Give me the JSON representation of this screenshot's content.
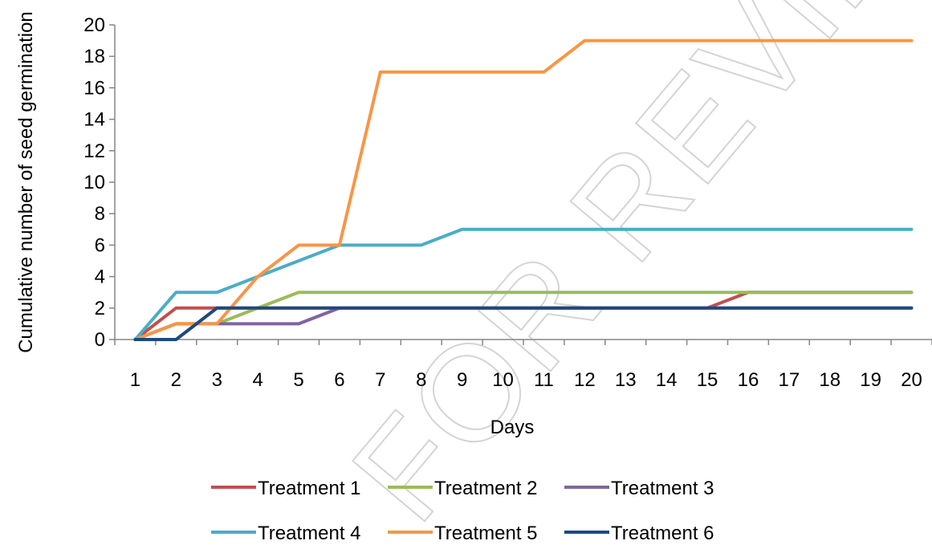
{
  "chart_data": {
    "type": "line",
    "title": "",
    "xlabel": "Days",
    "ylabel": "Cumulative number of seed germination",
    "x": [
      1,
      2,
      3,
      4,
      5,
      6,
      7,
      8,
      9,
      10,
      11,
      12,
      13,
      14,
      15,
      16,
      17,
      18,
      19,
      20
    ],
    "ylim": [
      0,
      20
    ],
    "yticks": [
      0,
      2,
      4,
      6,
      8,
      10,
      12,
      14,
      16,
      18,
      20
    ],
    "grid": false,
    "legend": "bottom",
    "series": [
      {
        "name": "Treatment 1",
        "color": "#c0504d",
        "values": [
          0,
          2,
          2,
          2,
          2,
          2,
          2,
          2,
          2,
          2,
          2,
          2,
          2,
          2,
          2,
          3,
          3,
          3,
          3,
          3
        ]
      },
      {
        "name": "Treatment 2",
        "color": "#9bbb59",
        "values": [
          0,
          1,
          1,
          2,
          3,
          3,
          3,
          3,
          3,
          3,
          3,
          3,
          3,
          3,
          3,
          3,
          3,
          3,
          3,
          3
        ]
      },
      {
        "name": "Treatment 3",
        "color": "#8064a2",
        "values": [
          0,
          1,
          1,
          1,
          1,
          2,
          2,
          2,
          2,
          2,
          2,
          2,
          2,
          2,
          2,
          2,
          2,
          2,
          2,
          2
        ]
      },
      {
        "name": "Treatment 4",
        "color": "#4bacc6",
        "values": [
          0,
          3,
          3,
          4,
          5,
          6,
          6,
          6,
          7,
          7,
          7,
          7,
          7,
          7,
          7,
          7,
          7,
          7,
          7,
          7
        ]
      },
      {
        "name": "Treatment 5",
        "color": "#f79646",
        "values": [
          0,
          1,
          1,
          4,
          6,
          6,
          17,
          17,
          17,
          17,
          17,
          19,
          19,
          19,
          19,
          19,
          19,
          19,
          19,
          19
        ]
      },
      {
        "name": "Treatment 6",
        "color": "#1f497d",
        "values": [
          0,
          0,
          2,
          2,
          2,
          2,
          2,
          2,
          2,
          2,
          2,
          2,
          2,
          2,
          2,
          2,
          2,
          2,
          2,
          2
        ]
      }
    ]
  },
  "watermark": {
    "text": "FOR REVIEW"
  }
}
